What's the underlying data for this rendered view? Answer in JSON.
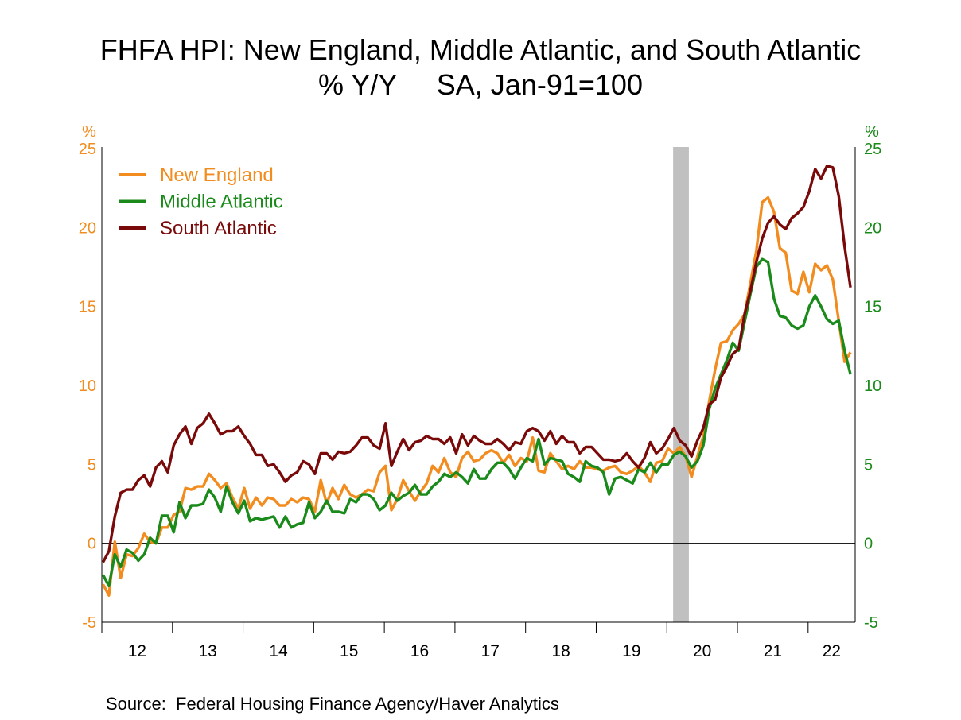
{
  "chart_data": {
    "type": "line",
    "title": "FHFA HPI: New England, Middle Atlantic, and South Atlantic",
    "subtitle": "% Y/Y     SA, Jan-91=100",
    "source": "Source:  Federal Housing Finance Agency/Haver Analytics",
    "left_axis": {
      "unit": "%",
      "ylim": [
        -5,
        25
      ],
      "ticks": [
        "-5",
        "0",
        "5",
        "10",
        "15",
        "20",
        "25"
      ],
      "color": "#F28C1E"
    },
    "right_axis": {
      "unit": "%",
      "ylim": [
        -5,
        25
      ],
      "ticks": [
        "-5",
        "0",
        "5",
        "10",
        "15",
        "20",
        "25"
      ],
      "color": "#1A8A1A"
    },
    "x_tick_labels": [
      "12",
      "13",
      "14",
      "15",
      "16",
      "17",
      "18",
      "19",
      "20",
      "21",
      "22"
    ],
    "x_years": [
      2012,
      2013,
      2014,
      2015,
      2016,
      2017,
      2018,
      2019,
      2020,
      2021,
      2022
    ],
    "x_axis_end": "2022-09",
    "recession": [
      "2020-02",
      "2020-04"
    ],
    "recession_color": "#C0C0C0",
    "zero_line": true,
    "grid": false,
    "legend_placement": "top-left",
    "x": [
      "2012-01",
      "2012-02",
      "2012-03",
      "2012-04",
      "2012-05",
      "2012-06",
      "2012-07",
      "2012-08",
      "2012-09",
      "2012-10",
      "2012-11",
      "2012-12",
      "2013-01",
      "2013-02",
      "2013-03",
      "2013-04",
      "2013-05",
      "2013-06",
      "2013-07",
      "2013-08",
      "2013-09",
      "2013-10",
      "2013-11",
      "2013-12",
      "2014-01",
      "2014-02",
      "2014-03",
      "2014-04",
      "2014-05",
      "2014-06",
      "2014-07",
      "2014-08",
      "2014-09",
      "2014-10",
      "2014-11",
      "2014-12",
      "2015-01",
      "2015-02",
      "2015-03",
      "2015-04",
      "2015-05",
      "2015-06",
      "2015-07",
      "2015-08",
      "2015-09",
      "2015-10",
      "2015-11",
      "2015-12",
      "2016-01",
      "2016-02",
      "2016-03",
      "2016-04",
      "2016-05",
      "2016-06",
      "2016-07",
      "2016-08",
      "2016-09",
      "2016-10",
      "2016-11",
      "2016-12",
      "2017-01",
      "2017-02",
      "2017-03",
      "2017-04",
      "2017-05",
      "2017-06",
      "2017-07",
      "2017-08",
      "2017-09",
      "2017-10",
      "2017-11",
      "2017-12",
      "2018-01",
      "2018-02",
      "2018-03",
      "2018-04",
      "2018-05",
      "2018-06",
      "2018-07",
      "2018-08",
      "2018-09",
      "2018-10",
      "2018-11",
      "2018-12",
      "2019-01",
      "2019-02",
      "2019-03",
      "2019-04",
      "2019-05",
      "2019-06",
      "2019-07",
      "2019-08",
      "2019-09",
      "2019-10",
      "2019-11",
      "2019-12",
      "2020-01",
      "2020-02",
      "2020-03",
      "2020-04",
      "2020-05",
      "2020-06",
      "2020-07",
      "2020-08",
      "2020-09",
      "2020-10",
      "2020-11",
      "2020-12",
      "2021-01",
      "2021-02",
      "2021-03",
      "2021-04",
      "2021-05",
      "2021-06",
      "2021-07",
      "2021-08",
      "2021-09",
      "2021-10",
      "2021-11",
      "2021-12",
      "2022-01",
      "2022-02",
      "2022-03",
      "2022-04",
      "2022-05",
      "2022-06",
      "2022-07",
      "2022-08"
    ],
    "series": [
      {
        "name": "New England",
        "color": "#F28C1E",
        "values": [
          -2.6,
          -3.3,
          0.1,
          -2.2,
          -0.7,
          -0.8,
          -0.3,
          0.6,
          0.1,
          0.0,
          1.0,
          1.0,
          1.8,
          2.0,
          3.5,
          3.4,
          3.6,
          3.6,
          4.4,
          4.0,
          3.5,
          3.8,
          2.9,
          2.2,
          3.5,
          2.2,
          2.9,
          2.4,
          2.9,
          2.8,
          2.4,
          2.4,
          2.8,
          2.6,
          2.9,
          2.8,
          2.0,
          4.0,
          2.5,
          3.5,
          2.8,
          3.7,
          3.1,
          2.9,
          3.1,
          3.4,
          3.3,
          4.5,
          4.9,
          2.1,
          2.8,
          4.0,
          3.3,
          2.7,
          3.3,
          3.8,
          4.9,
          4.5,
          5.4,
          4.5,
          4.2,
          5.4,
          5.8,
          5.2,
          5.3,
          5.7,
          5.9,
          5.7,
          5.1,
          5.6,
          4.9,
          5.4,
          5.2,
          6.7,
          4.6,
          4.5,
          5.7,
          5.2,
          4.7,
          4.9,
          4.7,
          5.2,
          4.8,
          4.8,
          4.7,
          4.6,
          4.8,
          4.9,
          4.5,
          4.4,
          4.6,
          4.9,
          4.5,
          3.9,
          5.1,
          5.2,
          6.0,
          5.7,
          6.1,
          5.5,
          4.2,
          5.5,
          6.8,
          9.0,
          11.0,
          12.7,
          12.8,
          13.5,
          13.9,
          14.5,
          16.5,
          18.5,
          21.6,
          21.9,
          21.0,
          18.7,
          18.4,
          16.0,
          15.8,
          17.2,
          15.9,
          17.7,
          17.3,
          17.6,
          16.7,
          14.1,
          11.5,
          12.1
        ]
      },
      {
        "name": "Middle Atlantic",
        "color": "#1A8A1A",
        "values": [
          -2.0,
          -2.7,
          -0.7,
          -1.5,
          -0.4,
          -0.6,
          -1.1,
          -0.7,
          0.35,
          0.0,
          1.75,
          1.75,
          0.7,
          2.6,
          1.6,
          2.4,
          2.4,
          2.5,
          3.4,
          2.9,
          2.0,
          3.6,
          2.6,
          1.9,
          2.7,
          1.4,
          1.6,
          1.5,
          1.6,
          1.7,
          1.0,
          1.7,
          1.0,
          1.2,
          1.3,
          2.6,
          1.6,
          2.0,
          2.7,
          2.0,
          2.0,
          1.9,
          2.8,
          2.6,
          3.1,
          3.1,
          2.8,
          2.1,
          2.4,
          3.2,
          2.7,
          3.0,
          3.2,
          3.7,
          3.1,
          3.1,
          3.6,
          3.9,
          4.4,
          4.2,
          4.5,
          4.2,
          3.8,
          4.7,
          4.1,
          4.1,
          4.7,
          5.1,
          5.1,
          4.7,
          4.1,
          4.8,
          5.4,
          5.2,
          6.6,
          5.0,
          5.4,
          5.3,
          5.2,
          4.4,
          4.2,
          3.9,
          5.2,
          4.9,
          4.8,
          4.5,
          3.1,
          4.1,
          4.2,
          4.0,
          3.8,
          4.7,
          4.5,
          5.1,
          4.5,
          5.0,
          5.0,
          5.6,
          5.8,
          5.5,
          4.8,
          5.2,
          6.2,
          8.5,
          9.8,
          10.7,
          11.6,
          12.7,
          12.2,
          14.0,
          15.8,
          17.5,
          18.0,
          17.8,
          15.5,
          14.4,
          14.3,
          13.8,
          13.6,
          13.8,
          15.0,
          15.7,
          15.0,
          14.2,
          13.9,
          14.1,
          12.2,
          10.7
        ]
      },
      {
        "name": "South Atlantic",
        "color": "#7A0A0A",
        "values": [
          -1.2,
          -0.5,
          1.7,
          3.2,
          3.4,
          3.4,
          4.0,
          4.3,
          3.6,
          4.8,
          5.2,
          4.5,
          6.2,
          6.9,
          7.4,
          6.3,
          7.3,
          7.6,
          8.2,
          7.6,
          6.9,
          7.1,
          7.1,
          7.4,
          6.8,
          6.3,
          5.6,
          5.6,
          4.9,
          5.0,
          4.5,
          3.9,
          4.3,
          4.5,
          5.2,
          5.0,
          4.4,
          5.7,
          5.7,
          5.3,
          5.8,
          5.7,
          5.8,
          6.2,
          6.7,
          6.7,
          6.2,
          6.0,
          7.6,
          4.9,
          5.8,
          6.6,
          5.9,
          6.4,
          6.5,
          6.8,
          6.6,
          6.6,
          6.3,
          6.7,
          5.7,
          6.9,
          6.2,
          6.8,
          6.5,
          6.3,
          6.3,
          6.6,
          6.3,
          5.9,
          6.4,
          6.3,
          7.1,
          7.3,
          7.1,
          6.5,
          7.1,
          6.3,
          6.8,
          6.4,
          6.4,
          5.7,
          6.1,
          6.1,
          5.7,
          5.3,
          5.3,
          5.2,
          5.3,
          5.7,
          5.2,
          4.8,
          5.4,
          6.4,
          5.7,
          6.0,
          6.6,
          7.3,
          6.5,
          6.2,
          5.5,
          6.5,
          7.3,
          8.8,
          9.1,
          10.5,
          11.2,
          12.0,
          12.3,
          14.5,
          16.0,
          17.8,
          19.3,
          20.3,
          20.7,
          20.2,
          19.9,
          20.6,
          20.9,
          21.3,
          22.3,
          23.7,
          23.1,
          23.9,
          23.8,
          22.0,
          18.8,
          16.2
        ]
      }
    ]
  }
}
